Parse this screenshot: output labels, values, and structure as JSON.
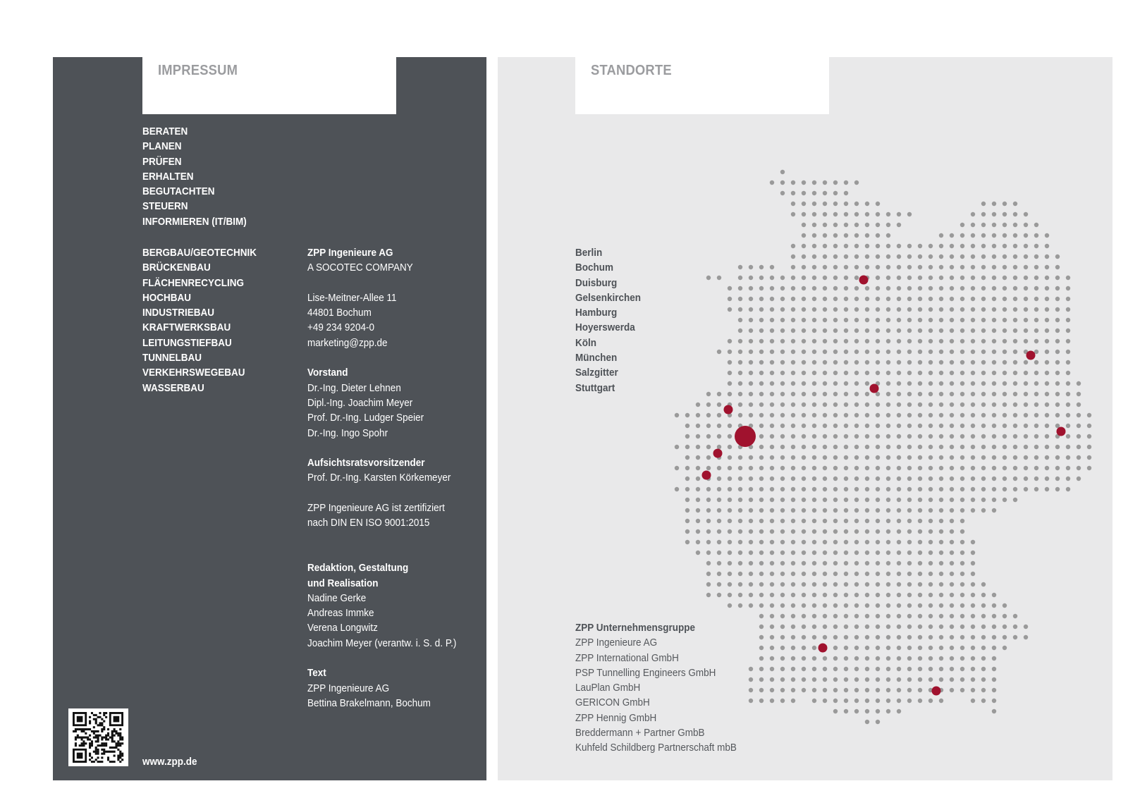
{
  "impressum": {
    "title": "IMPRESSUM",
    "services": [
      "BERATEN",
      "PLANEN",
      "PRÜFEN",
      "ERHALTEN",
      "BEGUTACHTEN",
      "STEUERN",
      "INFORMIEREN (IT/BIM)"
    ],
    "sectors": [
      "BERGBAU/GEOTECHNIK",
      "BRÜCKENBAU",
      "FLÄCHENRECYCLING",
      "HOCHBAU",
      "INDUSTRIEBAU",
      "KRAFTWERKSBAU",
      "LEITUNGSTIEFBAU",
      "TUNNELBAU",
      "VERKEHRSWEGEBAU",
      "WASSERBAU"
    ],
    "company": {
      "name": "ZPP Ingenieure AG",
      "subtitle": "A SOCOTEC COMPANY",
      "street": "Lise-Meitner-Allee 11",
      "city": "44801 Bochum",
      "phone": "+49 234 9204-0",
      "email": "marketing@zpp.de"
    },
    "board": {
      "heading": "Vorstand",
      "members": [
        "Dr.-Ing. Dieter Lehnen",
        "Dipl.-Ing. Joachim Meyer",
        "Prof. Dr.-Ing. Ludger Speier",
        "Dr.-Ing. Ingo Spohr"
      ]
    },
    "supervisory": {
      "heading": "Aufsichtsratsvorsitzender",
      "name": "Prof. Dr.-Ing. Karsten Körkemeyer"
    },
    "certification": [
      "ZPP Ingenieure AG ist zertifiziert",
      "nach DIN EN ISO  9001:2015"
    ],
    "editorial": {
      "heading_line1": "Redaktion, Gestaltung",
      "heading_line2": "und Realisation",
      "members": [
        "Nadine Gerke",
        "Andreas Immke",
        "Verena Longwitz",
        "Joachim Meyer (verantw. i. S. d. P.)"
      ]
    },
    "text_credit": {
      "heading": "Text",
      "lines": [
        "ZPP Ingenieure AG",
        "Bettina Brakelmann, Bochum"
      ]
    },
    "website": "www.zpp.de"
  },
  "standorte": {
    "title": "STANDORTE",
    "cities": [
      "Berlin",
      "Bochum",
      "Duisburg",
      "Gelsenkirchen",
      "Hamburg",
      "Hoyerswerda",
      "Köln",
      "München",
      "Salzgitter",
      "Stuttgart"
    ],
    "group": {
      "heading": "ZPP Unternehmensgruppe",
      "companies": [
        "ZPP Ingenieure AG",
        "ZPP International GmbH",
        "PSP Tunnelling Engineers GmbH",
        "LauPlan GmbH",
        "GERICON GmbH",
        "ZPP Hennig GmbH",
        "Breddermann + Partner GmbB",
        "Kuhfeld Schildberg Partnerschaft mbB"
      ]
    }
  },
  "colors": {
    "panel_dark": "#4e5257",
    "panel_light": "#e9e9ea",
    "dot": "#9a9a9a",
    "marker": "#a0122e"
  }
}
